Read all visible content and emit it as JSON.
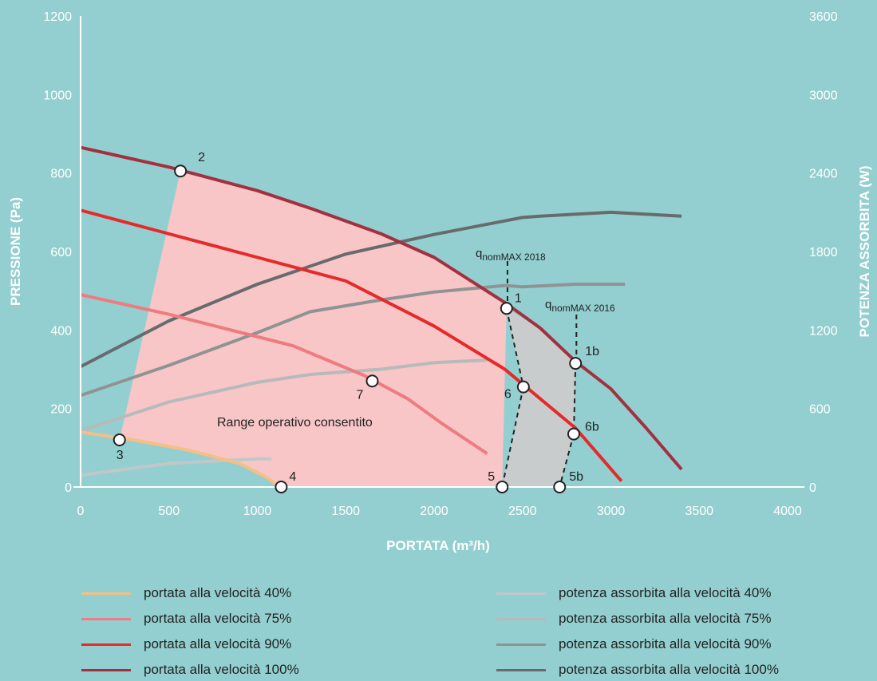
{
  "chart_data": {
    "type": "line",
    "xlabel": "PORTATA (m³/h)",
    "ylabel": "PRESSIONE (Pa)",
    "y2label": "POTENZA ASSORBITA (W)",
    "xlim": [
      0,
      4000
    ],
    "ylim": [
      0,
      1200
    ],
    "y2lim": [
      0,
      3600
    ],
    "x_ticks": [
      "0",
      "500",
      "1000",
      "1500",
      "2000",
      "2500",
      "3000",
      "3500",
      "4000"
    ],
    "y_ticks": [
      "0",
      "200",
      "400",
      "600",
      "800",
      "1000",
      "1200"
    ],
    "y2_ticks": [
      "0",
      "600",
      "1200",
      "1800",
      "2400",
      "3000",
      "3600"
    ],
    "pressure_series": [
      {
        "name": "portata alla velocità 40%",
        "color": "#f5bf85",
        "x": [
          0,
          300,
          600,
          900,
          1050,
          1130
        ],
        "y": [
          140,
          120,
          95,
          60,
          25,
          0
        ]
      },
      {
        "name": "portata alla velocità 75%",
        "color": "#ee7b80",
        "x": [
          0,
          500,
          1200,
          1600,
          1850,
          2050,
          2300
        ],
        "y": [
          490,
          440,
          360,
          285,
          225,
          160,
          85
        ]
      },
      {
        "name": "portata alla velocità 90%",
        "color": "#e52a29",
        "x": [
          0,
          500,
          1000,
          1500,
          2000,
          2400,
          2800,
          3060
        ],
        "y": [
          705,
          645,
          585,
          525,
          410,
          300,
          150,
          15
        ]
      },
      {
        "name": "portata alla velocità 100%",
        "color": "#a3303e",
        "x": [
          0,
          500,
          1000,
          1300,
          1700,
          2000,
          2400,
          2600,
          2800,
          3000,
          3200,
          3400
        ],
        "y": [
          865,
          815,
          755,
          710,
          645,
          585,
          470,
          405,
          320,
          250,
          150,
          45
        ]
      }
    ],
    "power_series": [
      {
        "name": "potenza assorbita alla velocità 40%",
        "color": "#c1c7c8",
        "x": [
          0,
          500,
          1000,
          1080
        ],
        "y": [
          90,
          180,
          215,
          215
        ]
      },
      {
        "name": "potenza assorbita alla velocità 75%",
        "color": "#b6babb",
        "x": [
          0,
          500,
          1000,
          1300,
          1700,
          2000,
          2300
        ],
        "y": [
          430,
          650,
          800,
          860,
          900,
          950,
          970
        ]
      },
      {
        "name": "potenza assorbita alla velocità 90%",
        "color": "#8f9394",
        "x": [
          0,
          500,
          1000,
          1300,
          1700,
          2000,
          2400,
          2500,
          2800,
          3080
        ],
        "y": [
          700,
          930,
          1180,
          1340,
          1430,
          1490,
          1540,
          1530,
          1550,
          1550
        ]
      },
      {
        "name": "potenza assorbita alla velocità 100%",
        "color": "#676b6e",
        "x": [
          0,
          500,
          1000,
          1500,
          2000,
          2500,
          2600,
          3000,
          3400
        ],
        "y": [
          920,
          1270,
          1550,
          1780,
          1930,
          2060,
          2070,
          2100,
          2070
        ]
      }
    ],
    "points": [
      {
        "label": "1",
        "x": 2410,
        "y": 455
      },
      {
        "label": "1b",
        "x": 2800,
        "y": 315
      },
      {
        "label": "2",
        "x": 565,
        "y": 805
      },
      {
        "label": "3",
        "x": 220,
        "y": 120
      },
      {
        "label": "4",
        "x": 1135,
        "y": 0
      },
      {
        "label": "5",
        "x": 2385,
        "y": 0
      },
      {
        "label": "5b",
        "x": 2710,
        "y": 0
      },
      {
        "label": "6",
        "x": 2505,
        "y": 255
      },
      {
        "label": "6b",
        "x": 2790,
        "y": 135
      },
      {
        "label": "7",
        "x": 1650,
        "y": 270
      }
    ],
    "region_label": "Range operativo consentito",
    "qnom_2018": {
      "main": "q",
      "sub": "nomMAX 2018",
      "x": 2415
    },
    "qnom_2016": {
      "main": "q",
      "sub": "nomMAX 2016",
      "x": 2805
    },
    "allowed_region_color": "#f8c6c6",
    "extra_region_color": "#c9cccd",
    "legend_placement": "bottom"
  }
}
